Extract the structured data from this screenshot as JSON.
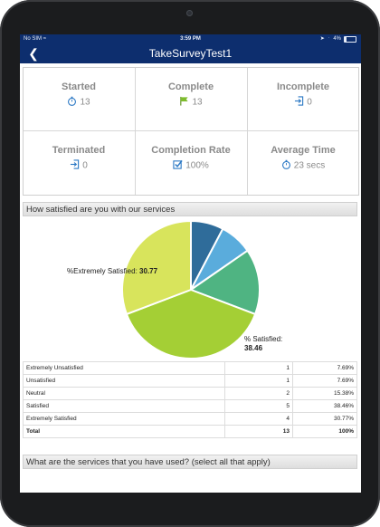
{
  "status_bar": {
    "carrier": "No SIM",
    "time": "3:59 PM",
    "battery": "4%"
  },
  "nav": {
    "title": "TakeSurveyTest1"
  },
  "stats": [
    {
      "label": "Started",
      "value": "13",
      "icon": "stopwatch-icon"
    },
    {
      "label": "Complete",
      "value": "13",
      "icon": "flag-icon"
    },
    {
      "label": "Incomplete",
      "value": "0",
      "icon": "exit-icon"
    },
    {
      "label": "Terminated",
      "value": "0",
      "icon": "exit-icon"
    },
    {
      "label": "Completion Rate",
      "value": "100%",
      "icon": "checkbox-icon"
    },
    {
      "label": "Average Time",
      "value": "23 secs",
      "icon": "stopwatch-icon"
    }
  ],
  "question1": {
    "title": "How satisfied are you with our services"
  },
  "chart_data": {
    "type": "pie",
    "categories": [
      "Extremely Unsatisfied",
      "Unsatisfied",
      "Neutral",
      "Satisfied",
      "Extremely Satisfied"
    ],
    "values": [
      7.69,
      7.69,
      15.38,
      38.46,
      30.77
    ],
    "colors": [
      "#2f6c9a",
      "#5aacdc",
      "#4fb482",
      "#a4cf35",
      "#d8e45c"
    ],
    "labels": [
      {
        "text": "%Extremely Satisfied:",
        "value": "30.77"
      },
      {
        "text": "% Satisfied:",
        "value": "38.46"
      }
    ]
  },
  "table": {
    "rows": [
      {
        "label": "Extremely Unsatisfied",
        "count": "1",
        "percent": "7.69%"
      },
      {
        "label": "Unsatisfied",
        "count": "1",
        "percent": "7.69%"
      },
      {
        "label": "Neutral",
        "count": "2",
        "percent": "15.38%"
      },
      {
        "label": "Satisfied",
        "count": "5",
        "percent": "38.46%"
      },
      {
        "label": "Extremely Satisfied",
        "count": "4",
        "percent": "30.77%"
      }
    ],
    "total": {
      "label": "Total",
      "count": "13",
      "percent": "100%"
    }
  },
  "question2": {
    "title": "What are the services that you have used? (select all that apply)"
  }
}
